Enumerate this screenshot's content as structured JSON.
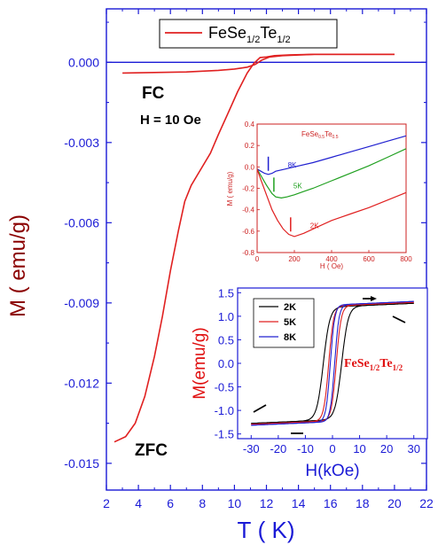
{
  "chart_data": [
    {
      "type": "line",
      "xlabel": "T ( K)",
      "ylabel": "M ( emu/g)",
      "xlim": [
        2,
        22
      ],
      "ylim": [
        -0.016,
        0.002
      ],
      "xticks": [
        "2",
        "4",
        "6",
        "8",
        "10",
        "12",
        "14",
        "16",
        "18",
        "20",
        "22"
      ],
      "yticks": [
        "0.000",
        "-0.003",
        "-0.006",
        "-0.009",
        "-0.012",
        "-0.015"
      ],
      "legend": {
        "position": "top",
        "main": "FeSe",
        "sub1": "1/2",
        "mid": "Te",
        "sub2": "1/2"
      },
      "annotations": {
        "fc": "FC",
        "field": "H = 10 Oe",
        "zfc": "ZFC"
      },
      "series": [
        {
          "name": "ZFC",
          "color": "#e02020",
          "x": [
            2.5,
            3.2,
            3.8,
            4.4,
            5.0,
            5.5,
            6.0,
            6.5,
            6.9,
            7.3,
            7.8,
            8.5,
            9.0,
            9.6,
            10.2,
            10.8,
            11.2,
            11.6,
            12.0,
            12.5,
            13.5,
            15,
            17,
            20
          ],
          "y": [
            -0.0142,
            -0.014,
            -0.0135,
            -0.0125,
            -0.011,
            -0.0095,
            -0.0078,
            -0.0063,
            -0.0052,
            -0.0046,
            -0.0041,
            -0.0034,
            -0.0027,
            -0.0019,
            -0.0011,
            -0.0004,
            -5e-05,
            0.00018,
            0.0002,
            0.00025,
            0.00028,
            0.0003,
            0.0003,
            0.0003
          ]
        },
        {
          "name": "FC",
          "color": "#e02020",
          "x": [
            3,
            5,
            7,
            9,
            10,
            10.8,
            11.3,
            11.7,
            12.2,
            13,
            15,
            17,
            20
          ],
          "y": [
            -0.0004,
            -0.00038,
            -0.00036,
            -0.0003,
            -0.00025,
            -0.00018,
            -8e-05,
            8e-05,
            0.0002,
            0.00025,
            0.0003,
            0.0003,
            0.0003
          ]
        }
      ],
      "reference_lines": [
        {
          "y": 0.0,
          "color": "#1a1ad6"
        }
      ]
    },
    {
      "type": "line",
      "title_main": "FeSe",
      "title_sub1": "0.5",
      "title_mid": "Te",
      "title_sub2": "0.5",
      "xlabel": "H ( Oe)",
      "ylabel": "M ( emu/g)",
      "xlim": [
        0,
        800
      ],
      "ylim": [
        -0.8,
        0.4
      ],
      "xticks": [
        "0",
        "200",
        "400",
        "600",
        "800"
      ],
      "yticks": [
        "0.4",
        "0.2",
        "0.0",
        "-0.2",
        "-0.4",
        "-0.6",
        "-0.8"
      ],
      "series": [
        {
          "name": "8K",
          "color": "#2020d0",
          "x": [
            0,
            20,
            40,
            60,
            80,
            100,
            150,
            200,
            300,
            400,
            500,
            600,
            700,
            800
          ],
          "y": [
            -0.02,
            -0.04,
            -0.06,
            -0.07,
            -0.06,
            -0.04,
            -0.02,
            0.0,
            0.04,
            0.09,
            0.14,
            0.19,
            0.24,
            0.29
          ]
        },
        {
          "name": "5K",
          "color": "#20a020",
          "x": [
            0,
            20,
            50,
            80,
            100,
            130,
            160,
            200,
            250,
            300,
            400,
            500,
            600,
            700,
            800
          ],
          "y": [
            -0.02,
            -0.08,
            -0.17,
            -0.25,
            -0.28,
            -0.29,
            -0.28,
            -0.26,
            -0.23,
            -0.2,
            -0.13,
            -0.06,
            0.01,
            0.09,
            0.17
          ]
        },
        {
          "name": "2K",
          "color": "#e02020",
          "x": [
            0,
            20,
            50,
            80,
            110,
            140,
            170,
            200,
            250,
            300,
            400,
            500,
            600,
            700,
            800
          ],
          "y": [
            -0.02,
            -0.12,
            -0.26,
            -0.4,
            -0.5,
            -0.58,
            -0.63,
            -0.65,
            -0.62,
            -0.58,
            -0.5,
            -0.44,
            -0.38,
            -0.31,
            -0.24
          ]
        }
      ],
      "arrows": [
        {
          "label": "8K",
          "color": "#2020d0",
          "x": 60
        },
        {
          "label": "5K",
          "color": "#20a020",
          "x": 90
        },
        {
          "label": "2K",
          "color": "#e02020",
          "x": 180
        }
      ]
    },
    {
      "type": "line",
      "xlabel": "H(kOe)",
      "ylabel": "M(emu/g)",
      "xlim": [
        -35,
        35
      ],
      "ylim": [
        -1.6,
        1.6
      ],
      "xticks": [
        "-30",
        "-20",
        "-10",
        "0",
        "10",
        "20",
        "30"
      ],
      "yticks": [
        "1.5",
        "1.0",
        "0.5",
        "0.0",
        "-0.5",
        "-1.0",
        "-1.5"
      ],
      "label_main": "FeSe",
      "label_sub1": "1/2",
      "label_mid": "Te",
      "label_sub2": "1/2",
      "series": [
        {
          "name": "2K",
          "color": "#000000",
          "width": 1.1
        },
        {
          "name": "5K",
          "color": "#e02020",
          "width": 1.1
        },
        {
          "name": "8K",
          "color": "#2020d0",
          "width": 1.1
        }
      ]
    }
  ]
}
